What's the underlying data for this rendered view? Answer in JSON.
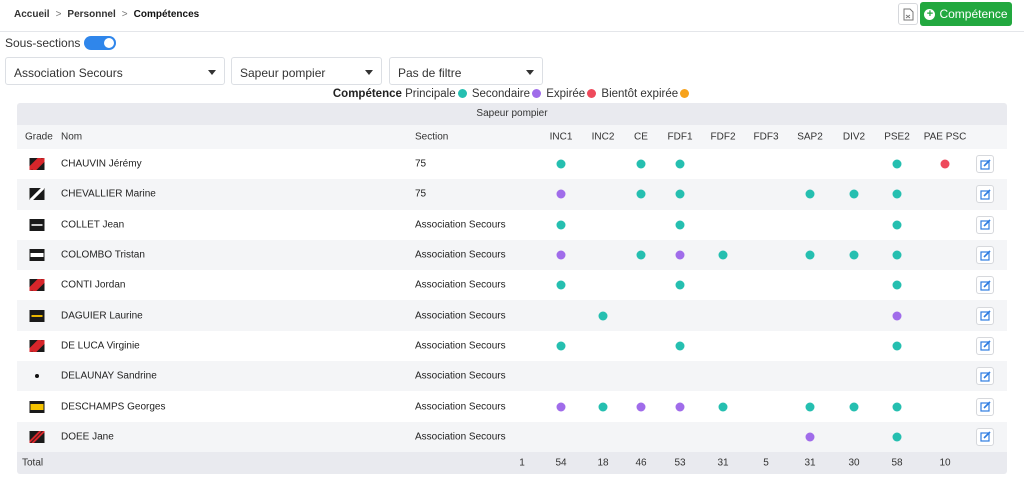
{
  "breadcrumb": [
    {
      "label": "Accueil"
    },
    {
      "label": "Personnel"
    },
    {
      "label": "Compétences"
    }
  ],
  "breadcrumb_separator": ">",
  "toolbar": {
    "export_icon": "file-export-icon",
    "add_button_label": "Compétence",
    "add_button_color": "#22a83f"
  },
  "subsections": {
    "label": "Sous-sections",
    "enabled": true
  },
  "filters": {
    "organization": "Association Secours",
    "role": "Sapeur pompier",
    "filter": "Pas de filtre"
  },
  "legend": {
    "title": "Compétence",
    "items": [
      {
        "label": "Principale",
        "color": "#25bfb0"
      },
      {
        "label": "Secondaire",
        "color": "#a06cea"
      },
      {
        "label": "Expirée",
        "color": "#ee4a5c"
      },
      {
        "label": "Bientôt expirée",
        "color": "#f7a21b"
      }
    ]
  },
  "table": {
    "group_label": "Sapeur pompier",
    "columns": {
      "grade": "Grade",
      "name": "Nom",
      "section": "Section"
    },
    "competences": [
      "INC1",
      "INC2",
      "CE",
      "FDF1",
      "FDF2",
      "FDF3",
      "SAP2",
      "DIV2",
      "PSE2",
      "PAE PSC"
    ],
    "status_colors": {
      "P": "#25bfb0",
      "S": "#a06cea",
      "E": "#ee4a5c",
      "B": "#f7a21b"
    },
    "rows": [
      {
        "name": "CHAUVIN Jérémy",
        "section": "75",
        "grade": "red-chevron",
        "status": [
          "P",
          "",
          "P",
          "P",
          "",
          "",
          "",
          "",
          "P",
          "E"
        ]
      },
      {
        "name": "CHEVALLIER Marine",
        "section": "75",
        "grade": "white-stripe",
        "status": [
          "S",
          "",
          "P",
          "P",
          "",
          "",
          "P",
          "P",
          "P",
          ""
        ]
      },
      {
        "name": "COLLET Jean",
        "section": "Association Secours",
        "grade": "silver-bar",
        "status": [
          "P",
          "",
          "",
          "P",
          "",
          "",
          "",
          "",
          "P",
          ""
        ]
      },
      {
        "name": "COLOMBO Tristan",
        "section": "Association Secours",
        "grade": "white-wide-bar",
        "status": [
          "S",
          "",
          "P",
          "S",
          "P",
          "",
          "P",
          "P",
          "P",
          ""
        ]
      },
      {
        "name": "CONTI Jordan",
        "section": "Association Secours",
        "grade": "red-chevron",
        "status": [
          "P",
          "",
          "",
          "P",
          "",
          "",
          "",
          "",
          "P",
          ""
        ]
      },
      {
        "name": "DAGUIER Laurine",
        "section": "Association Secours",
        "grade": "gold-bar",
        "status": [
          "",
          "P",
          "",
          "",
          "",
          "",
          "",
          "",
          "S",
          ""
        ]
      },
      {
        "name": "DE LUCA Virginie",
        "section": "Association Secours",
        "grade": "red-chevron",
        "status": [
          "P",
          "",
          "",
          "P",
          "",
          "",
          "",
          "",
          "P",
          ""
        ]
      },
      {
        "name": "DELAUNAY Sandrine",
        "section": "Association Secours",
        "grade": "dot",
        "status": [
          "",
          "",
          "",
          "",
          "",
          "",
          "",
          "",
          "",
          ""
        ]
      },
      {
        "name": "DESCHAMPS Georges",
        "section": "Association Secours",
        "grade": "gold-wide-bar",
        "status": [
          "S",
          "P",
          "S",
          "S",
          "P",
          "",
          "P",
          "P",
          "P",
          ""
        ]
      },
      {
        "name": "DOEE Jane",
        "section": "Association Secours",
        "grade": "red-thin-chevron",
        "status": [
          "",
          "",
          "",
          "",
          "",
          "",
          "S",
          "",
          "P",
          ""
        ]
      }
    ],
    "edit_icon": "edit-icon",
    "total": {
      "label": "Total",
      "extra": "1",
      "values": [
        "54",
        "18",
        "46",
        "53",
        "31",
        "5",
        "31",
        "30",
        "58",
        "10"
      ]
    }
  }
}
